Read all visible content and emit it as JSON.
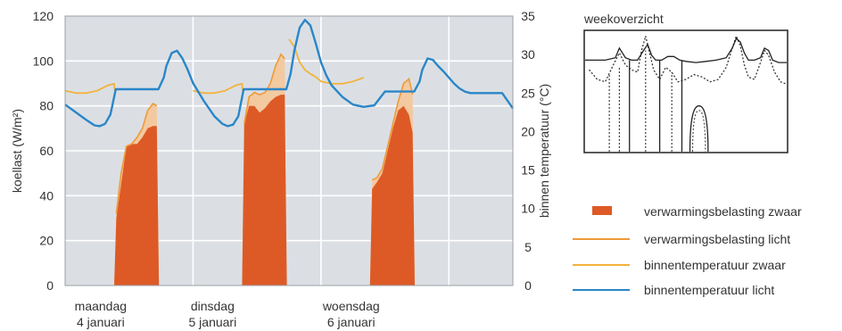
{
  "chart_data": {
    "type": "area",
    "title": "",
    "ylabel_left": "koellast (W/m²)",
    "ylabel_right": "binnen temperatuur (°C)",
    "ylim_left": [
      0,
      120
    ],
    "ylim_right": [
      0,
      35
    ],
    "left_ticks": [
      "0",
      "20",
      "40",
      "60",
      "80",
      "100",
      "120"
    ],
    "right_ticks": [
      "0",
      "5",
      "10",
      "15",
      "20",
      "25",
      "30",
      "35"
    ],
    "xlim_hours": [
      0,
      84
    ],
    "days": [
      {
        "name": "maandag",
        "date": "4 januari",
        "hour": 6
      },
      {
        "name": "dinsdag",
        "date": "5 januari",
        "hour": 27
      },
      {
        "name": "woensdag",
        "date": "6 januari",
        "hour": 53
      }
    ],
    "series": [
      {
        "name": "verwarmingsbelasting zwaar",
        "kind": "area",
        "axis": "left",
        "color": "#dd5a26",
        "x": [
          9.2,
          9.6,
          10.5,
          11.5,
          12.5,
          13.5,
          14.5,
          15.5,
          16.5,
          17.2,
          17.6
        ],
        "y": [
          0,
          30,
          45,
          62,
          63,
          63,
          66,
          70,
          71,
          71,
          0
        ]
      },
      {
        "name": "verwarmingsbelasting zwaar",
        "kind": "area",
        "axis": "left",
        "color": "#dd5a26",
        "x": [
          33.2,
          33.6,
          34.5,
          35.5,
          36.5,
          37.5,
          38.5,
          39.5,
          40.5,
          41.2,
          41.6
        ],
        "y": [
          0,
          72,
          80,
          80,
          77,
          79,
          82,
          84,
          85,
          85,
          0
        ]
      },
      {
        "name": "verwarmingsbelasting zwaar",
        "kind": "area",
        "axis": "left",
        "color": "#dd5a26",
        "x": [
          57.2,
          57.6,
          58.5,
          59.5,
          60.5,
          61.5,
          62.5,
          63.5,
          64.5,
          65.2,
          65.6
        ],
        "y": [
          0,
          43,
          46,
          50,
          60,
          70,
          78,
          80,
          76,
          68,
          0
        ]
      },
      {
        "name": "verwarmingsbelasting licht",
        "kind": "line",
        "axis": "left",
        "color": "#ee9a3a",
        "fill": "#f3c9a0",
        "x": [
          9.2,
          9.6,
          10.5,
          11.5,
          12.5,
          13.5,
          14.5,
          15.5,
          16.5,
          17.2,
          17.6
        ],
        "y": [
          0,
          32,
          50,
          62,
          63,
          66,
          70,
          78,
          81,
          80,
          0
        ]
      },
      {
        "name": "verwarmingsbelasting licht",
        "kind": "line",
        "axis": "left",
        "color": "#ee9a3a",
        "fill": "#f3c9a0",
        "x": [
          33.2,
          33.6,
          34.5,
          35.5,
          36.5,
          37.5,
          38.5,
          39.5,
          40.5,
          41.2,
          41.6
        ],
        "y": [
          0,
          72,
          84,
          86,
          85,
          86,
          90,
          98,
          103,
          101,
          0
        ]
      },
      {
        "name": "verwarmingsbelasting licht",
        "kind": "line",
        "axis": "left",
        "color": "#ee9a3a",
        "fill": "#f3c9a0",
        "x": [
          57.2,
          57.6,
          58.5,
          59.5,
          60.5,
          61.5,
          62.5,
          63.5,
          64.5,
          65.2,
          65.6
        ],
        "y": [
          0,
          47,
          48,
          52,
          62,
          72,
          82,
          90,
          92,
          85,
          0
        ]
      },
      {
        "name": "binnentemperatuur zwaar",
        "kind": "line",
        "axis": "right",
        "color": "#f2b23c",
        "x": [
          0,
          2,
          4,
          6,
          8,
          9.2,
          9.3
        ],
        "y": [
          25.3,
          25.0,
          25.0,
          25.3,
          26.0,
          26.2,
          25.3
        ]
      },
      {
        "name": "binnentemperatuur zwaar",
        "kind": "line",
        "axis": "right",
        "color": "#f2b23c",
        "x": [
          24,
          26,
          28,
          30,
          32,
          33.2,
          33.3
        ],
        "y": [
          25.3,
          25.0,
          25.0,
          25.3,
          26.0,
          26.2,
          25.3
        ]
      },
      {
        "name": "binnentemperatuur zwaar",
        "kind": "line",
        "axis": "right",
        "color": "#f2b23c",
        "x": [
          42,
          43,
          44,
          45,
          46,
          47,
          48,
          50,
          52,
          54,
          56
        ],
        "y": [
          32,
          31,
          29,
          28,
          27.5,
          27.1,
          26.5,
          26.2,
          26.2,
          26.5,
          27.0
        ]
      },
      {
        "name": "binnentemperatuur licht",
        "kind": "line",
        "axis": "right",
        "color": "#2a86c8",
        "x": [
          0,
          2,
          4,
          5.5,
          6.5,
          7.5,
          8.5,
          9.5,
          12,
          15,
          17.5,
          18.5,
          19,
          20,
          21,
          22,
          23,
          24,
          26,
          28,
          29.5,
          30.5,
          31.5,
          32.5,
          33.5,
          36,
          39,
          41.5,
          42.3,
          43,
          44,
          45,
          46,
          47,
          48,
          49,
          50,
          52,
          54,
          56,
          58,
          60,
          63,
          65.5,
          66.5,
          67,
          68,
          69,
          70,
          71,
          72,
          73,
          74,
          75,
          76,
          78,
          80,
          82,
          84
        ],
        "y": [
          23.5,
          22.5,
          21.5,
          20.8,
          20.7,
          21.0,
          22.2,
          25.5,
          25.5,
          25.5,
          25.5,
          27.0,
          28.5,
          30.2,
          30.5,
          29.5,
          28.0,
          26.3,
          24.0,
          22.0,
          21.0,
          20.7,
          20.9,
          22.0,
          25.5,
          25.5,
          25.5,
          25.5,
          27.5,
          30.5,
          33.5,
          34.5,
          33.8,
          31.5,
          29.0,
          27.3,
          26.0,
          24.5,
          23.5,
          23.2,
          23.4,
          25.2,
          25.2,
          25.2,
          26.5,
          28.0,
          29.5,
          29.3,
          28.5,
          27.8,
          27.0,
          26.2,
          25.6,
          25.2,
          25.0,
          25.0,
          25.0,
          25.0,
          23.0
        ]
      }
    ],
    "legend": [
      {
        "label": "verwarmingsbelasting zwaar",
        "symbol": "patch",
        "color": "#dd5a26"
      },
      {
        "label": "verwarmingsbelasting licht",
        "symbol": "line",
        "color": "#ee9a3a"
      },
      {
        "label": "binnentemperatuur zwaar",
        "symbol": "line",
        "color": "#f2b23c"
      },
      {
        "label": "binnentemperatuur licht",
        "symbol": "line",
        "color": "#2a86c8"
      }
    ],
    "legend_position": "right",
    "grid": true,
    "gridlines_left": [
      20,
      40,
      60,
      80,
      100
    ],
    "inset": {
      "title": "weekoverzicht",
      "type": "line",
      "x_range": [
        0,
        1
      ],
      "y_range": [
        0,
        1
      ],
      "solid_series": {
        "x": [
          0,
          0.05,
          0.1,
          0.15,
          0.17,
          0.2,
          0.23,
          0.26,
          0.29,
          0.31,
          0.33,
          0.35,
          0.38,
          0.41,
          0.44,
          0.47,
          0.5,
          0.55,
          0.6,
          0.65,
          0.7,
          0.73,
          0.75,
          0.77,
          0.79,
          0.81,
          0.84,
          0.87,
          0.89,
          0.91,
          0.93,
          0.96,
          1.0
        ],
        "y": [
          0.76,
          0.76,
          0.76,
          0.78,
          0.86,
          0.78,
          0.76,
          0.76,
          0.84,
          0.89,
          0.8,
          0.76,
          0.76,
          0.79,
          0.79,
          0.76,
          0.75,
          0.74,
          0.75,
          0.76,
          0.78,
          0.86,
          0.94,
          0.91,
          0.82,
          0.76,
          0.76,
          0.78,
          0.86,
          0.84,
          0.76,
          0.74,
          0.74
        ]
      },
      "dotted_series": {
        "x": [
          0.02,
          0.06,
          0.1,
          0.14,
          0.17,
          0.2,
          0.23,
          0.26,
          0.28,
          0.3,
          0.32,
          0.34,
          0.37,
          0.4,
          0.43,
          0.46,
          0.5,
          0.54,
          0.58,
          0.62,
          0.66,
          0.7,
          0.73,
          0.75,
          0.77,
          0.79,
          0.81,
          0.84,
          0.87,
          0.89,
          0.91,
          0.94,
          0.97,
          1.0
        ],
        "y": [
          0.68,
          0.6,
          0.58,
          0.72,
          0.82,
          0.72,
          0.68,
          0.66,
          0.84,
          0.96,
          0.82,
          0.68,
          0.6,
          0.7,
          0.66,
          0.58,
          0.6,
          0.64,
          0.62,
          0.58,
          0.6,
          0.7,
          0.86,
          0.96,
          0.88,
          0.72,
          0.62,
          0.6,
          0.74,
          0.84,
          0.8,
          0.66,
          0.58,
          0.56
        ]
      },
      "solid_spikes": [
        {
          "x": 0.22,
          "y_low": 0.0,
          "y_high": 0.76
        },
        {
          "x": 0.37,
          "y_low": 0.0,
          "y_high": 0.76
        },
        {
          "x": 0.48,
          "y_low": 0.0,
          "y_high": 0.76
        }
      ],
      "dotted_spikes": [
        {
          "x": 0.12,
          "y_low": 0.0,
          "y_high": 0.65
        },
        {
          "x": 0.17,
          "y_low": 0.0,
          "y_high": 0.7
        },
        {
          "x": 0.3,
          "y_low": 0.0,
          "y_high": 0.84
        },
        {
          "x": 0.43,
          "y_low": 0.0,
          "y_high": 0.66
        }
      ],
      "bump": {
        "x_center": 0.565,
        "half_width": 0.045,
        "peak": 0.38
      }
    }
  }
}
